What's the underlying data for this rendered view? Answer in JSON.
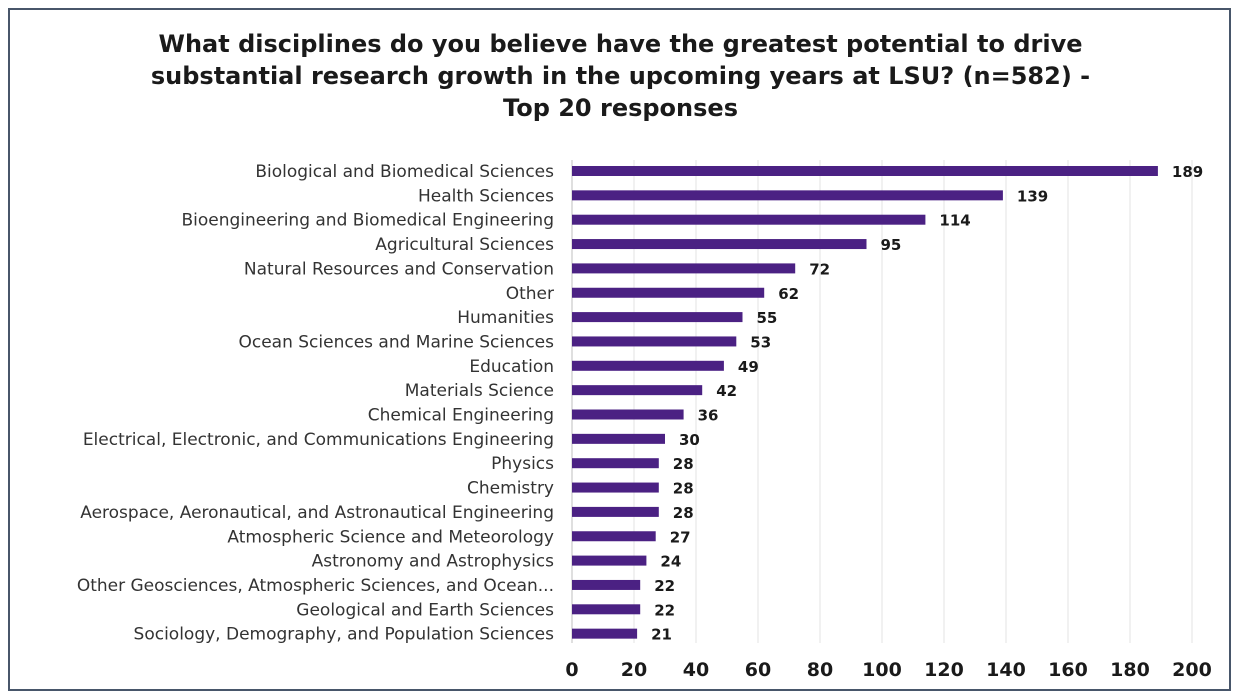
{
  "chart_data": {
    "type": "bar",
    "orientation": "horizontal",
    "title_lines": [
      "What disciplines do you believe have the greatest potential to drive",
      "substantial research growth in the upcoming years at LSU? (n=582) -",
      "Top 20 responses"
    ],
    "categories": [
      "Biological and Biomedical Sciences",
      "Health Sciences",
      "Bioengineering and Biomedical Engineering",
      "Agricultural Sciences",
      "Natural Resources and Conservation",
      "Other",
      "Humanities",
      "Ocean Sciences and Marine Sciences",
      "Education",
      "Materials Science",
      "Chemical Engineering",
      "Electrical, Electronic, and Communications Engineering",
      "Physics",
      "Chemistry",
      "Aerospace, Aeronautical, and Astronautical Engineering",
      "Atmospheric Science and Meteorology",
      "Astronomy and Astrophysics",
      "Other Geosciences, Atmospheric Sciences, and Ocean...",
      "Geological and Earth Sciences",
      "Sociology, Demography, and Population Sciences"
    ],
    "values": [
      189,
      139,
      114,
      95,
      72,
      62,
      55,
      53,
      49,
      42,
      36,
      30,
      28,
      28,
      28,
      27,
      24,
      22,
      22,
      21
    ],
    "xlim": [
      0,
      200
    ],
    "xticks": [
      0,
      20,
      40,
      60,
      80,
      100,
      120,
      140,
      160,
      180,
      200
    ],
    "xlabel": "",
    "ylabel": "",
    "grid": "vertical",
    "legend": "none",
    "data_labels": true,
    "colors": {
      "bar": "#4b2183",
      "grid": "#e3e3e3",
      "border": "#48566a",
      "text": "#1a1a1a"
    }
  }
}
